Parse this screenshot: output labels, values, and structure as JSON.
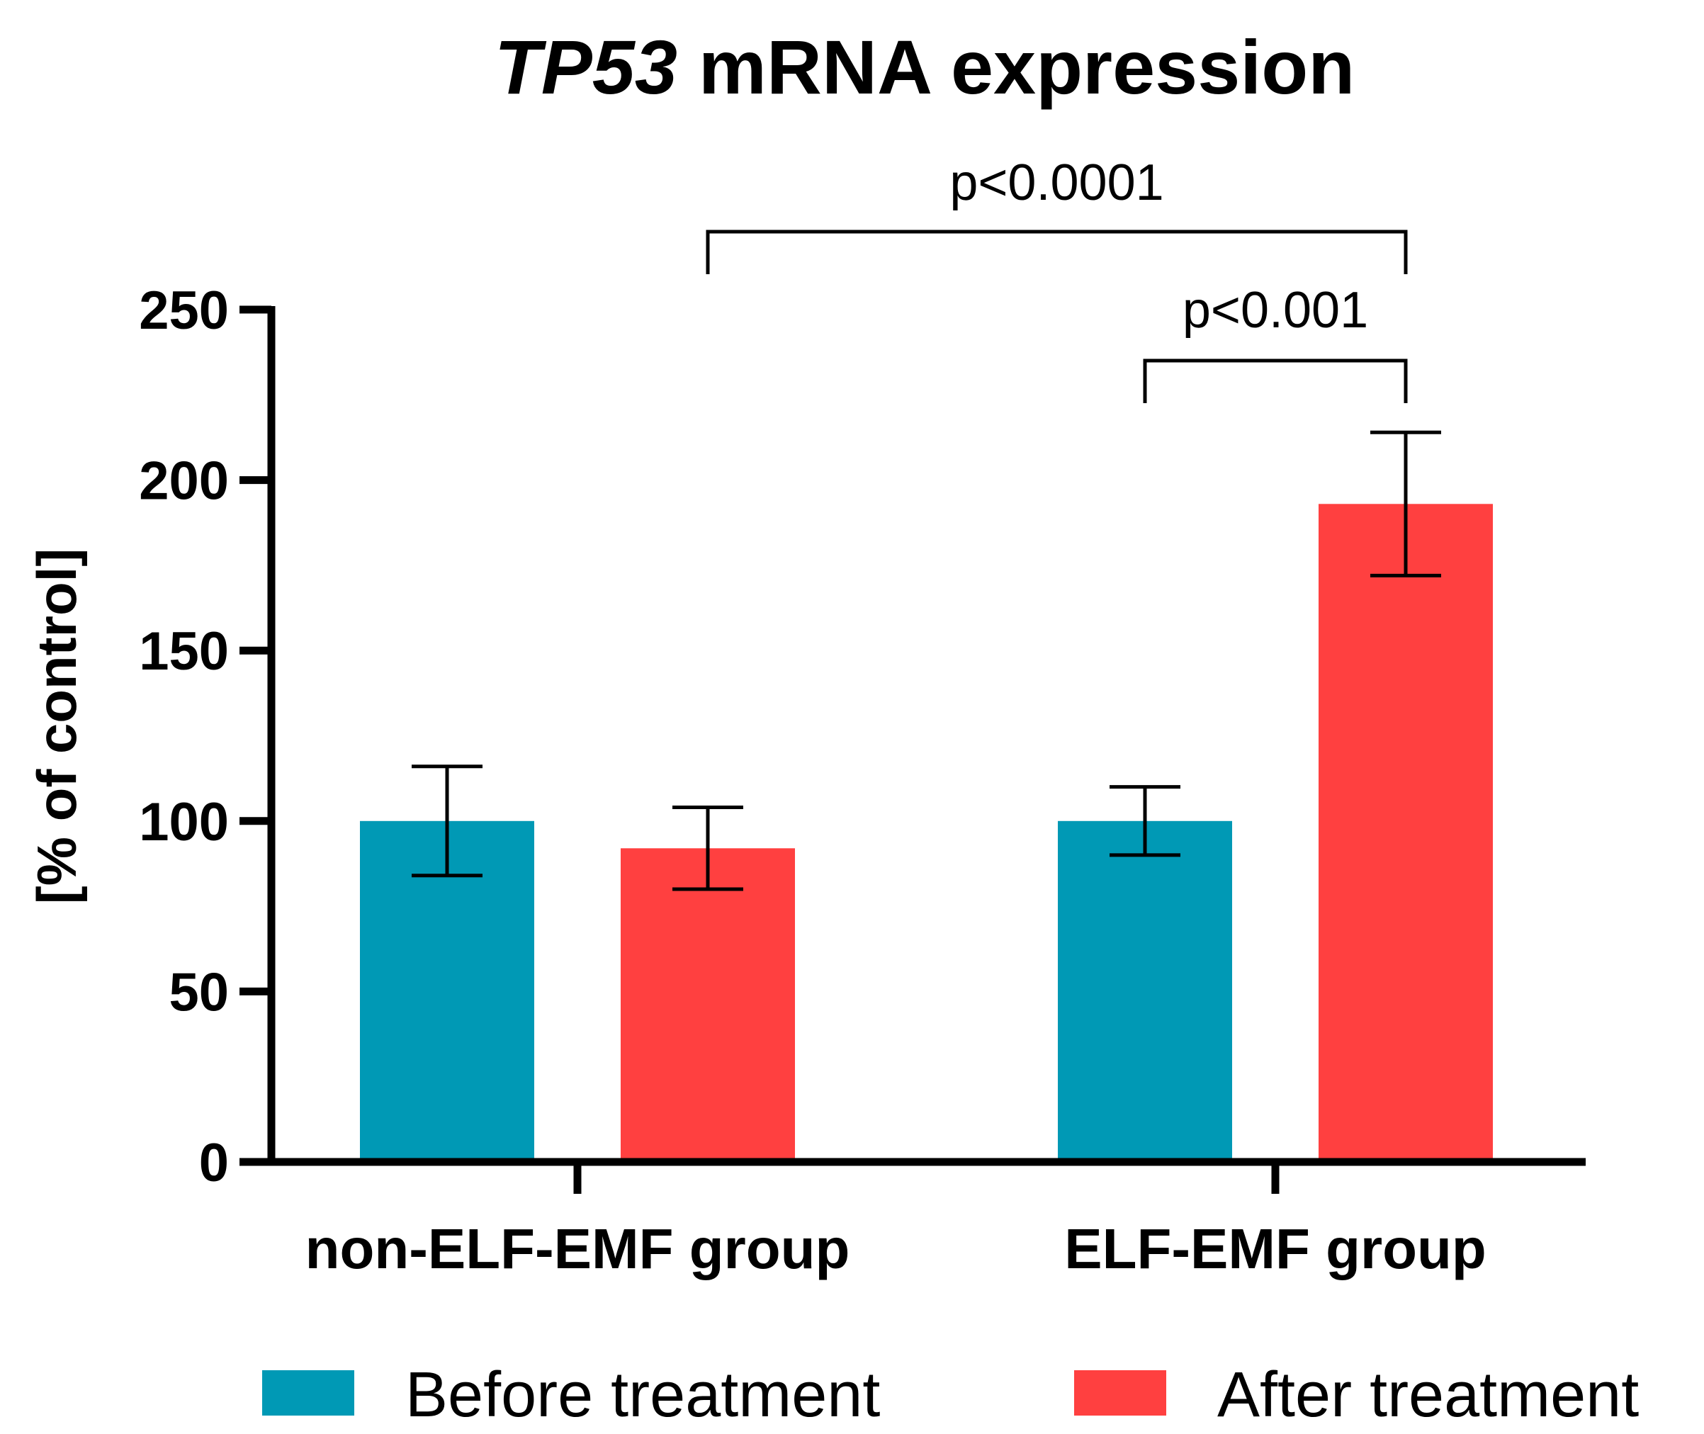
{
  "chart_data": {
    "type": "bar",
    "title": {
      "gene": "TP53",
      "rest": " mRNA expression"
    },
    "ylabel": "[% of control]",
    "ylim": [
      0,
      250
    ],
    "yticks": [
      0,
      50,
      100,
      150,
      200,
      250
    ],
    "categories": [
      "non-ELF-EMF group",
      "ELF-EMF group"
    ],
    "series": [
      {
        "name": "Before treatment",
        "color": "#0099b5",
        "values": [
          100,
          100
        ],
        "errors": [
          16,
          10
        ]
      },
      {
        "name": "After treatment",
        "color": "#ff4040",
        "values": [
          92,
          193
        ],
        "errors": [
          12,
          21
        ]
      }
    ],
    "annotations": [
      {
        "text": "p<0.0001",
        "from": {
          "category": 0,
          "series": 1
        },
        "to": {
          "category": 1,
          "series": 1
        }
      },
      {
        "text": "p<0.001",
        "from": {
          "category": 1,
          "series": 0
        },
        "to": {
          "category": 1,
          "series": 1
        }
      }
    ],
    "legend_position": "bottom",
    "grid": false
  }
}
